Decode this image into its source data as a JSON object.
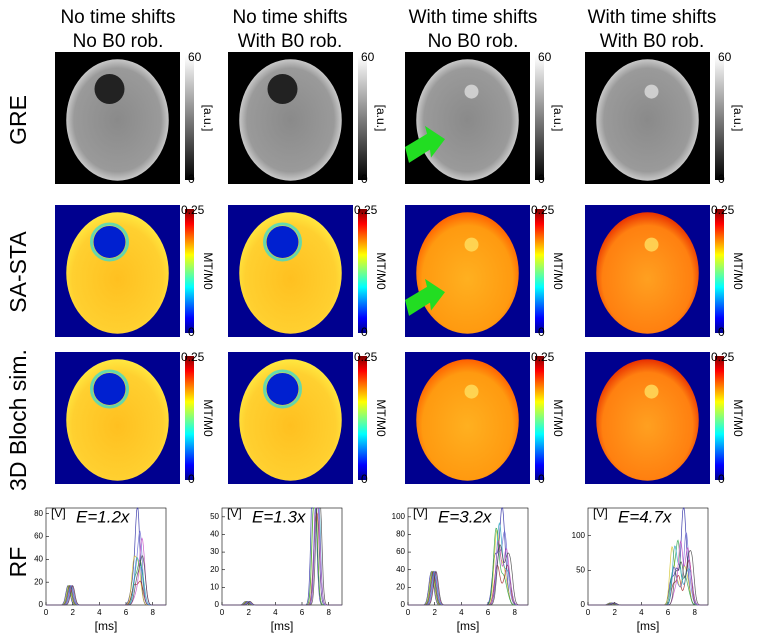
{
  "columns": [
    {
      "line1": "No time shifts",
      "line2": "No B0 rob."
    },
    {
      "line1": "No time shifts",
      "line2": "With B0 rob."
    },
    {
      "line1": "With time shifts",
      "line2": "No B0 rob."
    },
    {
      "line1": "With time shifts",
      "line2": "With B0 rob."
    }
  ],
  "rows": [
    {
      "label": "GRE",
      "colorbar": {
        "max": "60",
        "min": "0",
        "unit": "[a.u.]"
      }
    },
    {
      "label": "SA-STA",
      "colorbar": {
        "max": "0.25",
        "min": "0",
        "unit": "MT/M0"
      }
    },
    {
      "label": "3D Bloch sim.",
      "colorbar": {
        "max": "0.25",
        "min": "0",
        "unit": "MT/M0"
      }
    },
    {
      "label": "RF"
    }
  ],
  "rf_plots": [
    {
      "energy": "E=1.2x",
      "y_unit": "[V]",
      "x_label": "[ms]",
      "xlim": [
        0,
        9
      ],
      "xticks": [
        0,
        2,
        4,
        6,
        8
      ],
      "ylim": [
        0,
        85
      ],
      "yticks": [
        0,
        20,
        40,
        60,
        80
      ]
    },
    {
      "energy": "E=1.3x",
      "y_unit": "[V]",
      "x_label": "[ms]",
      "xlim": [
        0,
        9
      ],
      "xticks": [
        0,
        2,
        4,
        6,
        8
      ],
      "ylim": [
        0,
        55
      ],
      "yticks": [
        0,
        10,
        20,
        30,
        40,
        50
      ]
    },
    {
      "energy": "E=3.2x",
      "y_unit": "[V]",
      "x_label": "[ms]",
      "xlim": [
        0,
        9
      ],
      "xticks": [
        0,
        2,
        4,
        6,
        8
      ],
      "ylim": [
        0,
        110
      ],
      "yticks": [
        0,
        20,
        40,
        60,
        80,
        100
      ]
    },
    {
      "energy": "E=4.7x",
      "y_unit": "[V]",
      "x_label": "[ms]",
      "xlim": [
        0,
        9
      ],
      "xticks": [
        0,
        2,
        4,
        6,
        8
      ],
      "ylim": [
        0,
        140
      ],
      "yticks": [
        0,
        50,
        100
      ]
    }
  ]
}
